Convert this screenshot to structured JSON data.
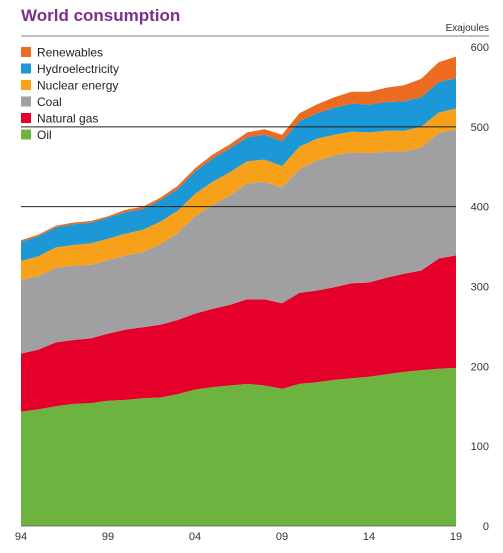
{
  "chart_data": {
    "type": "area",
    "stacked": true,
    "title": "World consumption",
    "ylabel": "Exajoules",
    "x_tick_labels": [
      "94",
      "99",
      "04",
      "09",
      "14",
      "19"
    ],
    "x_years": [
      1994,
      1995,
      1996,
      1997,
      1998,
      1999,
      2000,
      2001,
      2002,
      2003,
      2004,
      2005,
      2006,
      2007,
      2008,
      2009,
      2010,
      2011,
      2012,
      2013,
      2014,
      2015,
      2016,
      2017,
      2018,
      2019
    ],
    "x_range": [
      1994,
      2019
    ],
    "ylim": [
      0,
      600
    ],
    "y_ticks": [
      0,
      100,
      200,
      300,
      400,
      500,
      600
    ],
    "legend_position": "top-left",
    "series": [
      {
        "name": "Oil",
        "color": "#6db33f",
        "values": [
          143,
          146,
          150,
          153,
          154,
          157,
          158,
          160,
          161,
          165,
          171,
          174,
          176,
          178,
          176,
          172,
          178,
          180,
          183,
          185,
          187,
          190,
          193,
          195,
          197,
          198
        ]
      },
      {
        "name": "Natural gas",
        "color": "#e4002b",
        "values": [
          73,
          75,
          80,
          80,
          81,
          84,
          88,
          89,
          91,
          93,
          95,
          98,
          101,
          106,
          108,
          107,
          114,
          115,
          116,
          119,
          118,
          121,
          123,
          125,
          138,
          141
        ]
      },
      {
        "name": "Coal",
        "color": "#a09fa2",
        "values": [
          92,
          92,
          93,
          93,
          92,
          92,
          93,
          94,
          101,
          109,
          122,
          130,
          137,
          145,
          147,
          145,
          155,
          163,
          165,
          164,
          162,
          158,
          153,
          154,
          157,
          158
        ]
      },
      {
        "name": "Nuclear energy",
        "color": "#f7a11a",
        "values": [
          24,
          25,
          26,
          26,
          27,
          27,
          27,
          28,
          28,
          28,
          28,
          29,
          29,
          28,
          28,
          27,
          28,
          27,
          26,
          26,
          26,
          26,
          26,
          26,
          26,
          26
        ]
      },
      {
        "name": "Hydroelectricity",
        "color": "#1c98d6",
        "values": [
          24,
          25,
          25,
          26,
          26,
          26,
          27,
          26,
          27,
          27,
          28,
          29,
          30,
          30,
          31,
          31,
          32,
          32,
          34,
          35,
          35,
          36,
          37,
          37,
          38,
          38
        ]
      },
      {
        "name": "Renewables",
        "color": "#ed6b21",
        "values": [
          2,
          2,
          2,
          2,
          2,
          2,
          3,
          3,
          3,
          4,
          4,
          5,
          5,
          6,
          7,
          8,
          10,
          11,
          13,
          15,
          16,
          18,
          20,
          23,
          25,
          27
        ]
      }
    ]
  }
}
